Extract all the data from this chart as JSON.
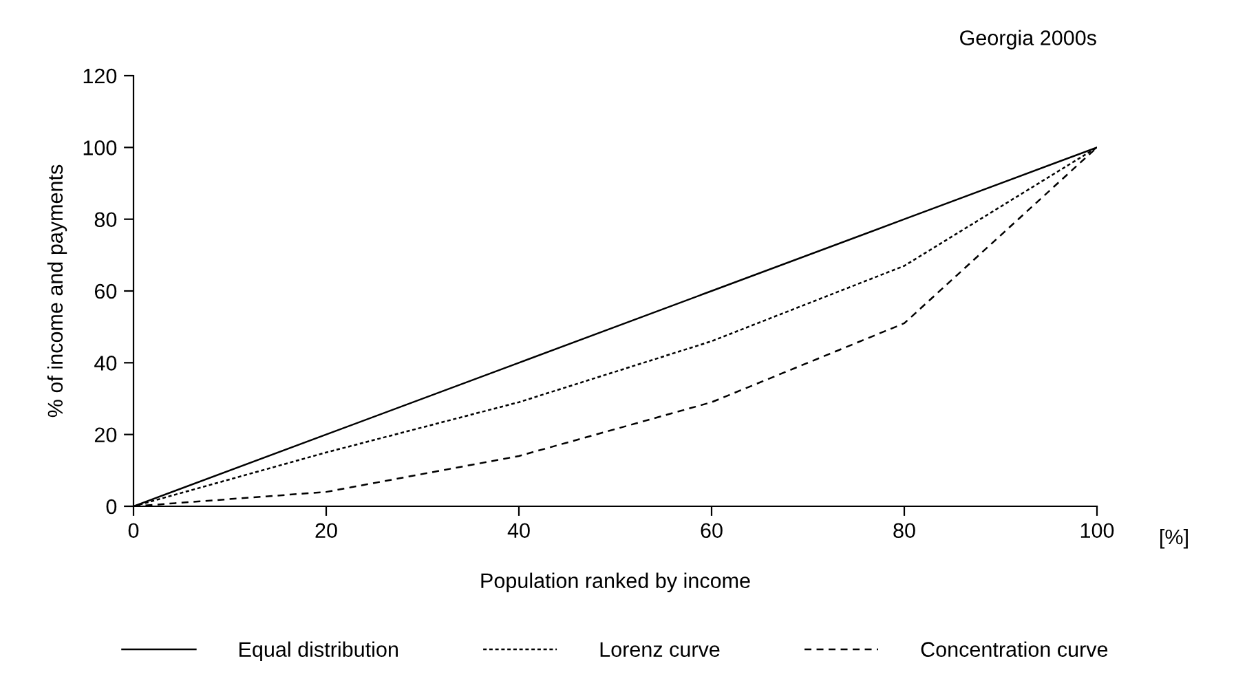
{
  "chart_data": {
    "type": "line",
    "title": "Georgia 2000s",
    "xlabel": "Population ranked by income",
    "ylabel": "% of income and payments",
    "x": [
      0,
      20,
      40,
      60,
      80,
      100
    ],
    "series": [
      {
        "name": "Equal distribution",
        "color": "#000000",
        "line_style": "solid",
        "values": [
          0,
          20,
          40,
          60,
          80,
          100
        ]
      },
      {
        "name": "Lorenz curve",
        "color": "#000000",
        "line_style": "dotted",
        "values": [
          0,
          15,
          29,
          46,
          67,
          100
        ]
      },
      {
        "name": "Concentration curve",
        "color": "#000000",
        "line_style": "dashed",
        "values": [
          0,
          4,
          14,
          29,
          51,
          100
        ]
      }
    ],
    "xlim": [
      0,
      100
    ],
    "xticks": [
      0,
      20,
      40,
      60,
      80,
      100
    ],
    "ylim": [
      0,
      120
    ],
    "yticks": [
      0,
      20,
      40,
      60,
      80,
      100,
      120
    ],
    "annotations": [
      "[%]"
    ],
    "grid": false,
    "legend": "bottom",
    "marker": "none"
  }
}
